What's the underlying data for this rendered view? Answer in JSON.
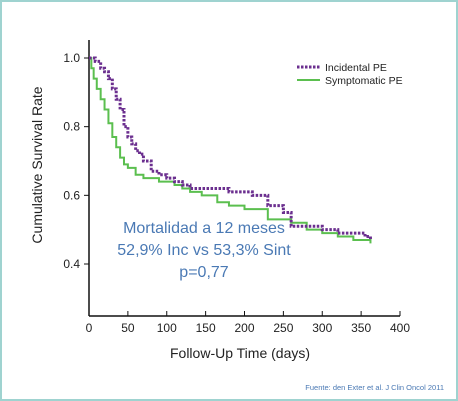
{
  "chart_data": {
    "type": "line",
    "title": "",
    "xlabel": "Follow-Up Time (days)",
    "ylabel": "Cumulative Survival Rate",
    "xlim": [
      0,
      400
    ],
    "ylim": [
      0.3,
      1.0
    ],
    "xticks": [
      0,
      50,
      100,
      150,
      200,
      250,
      300,
      350,
      400
    ],
    "yticks": [
      0.4,
      0.6,
      0.8,
      1.0
    ],
    "xtick_labels": [
      "0",
      "50",
      "100",
      "150",
      "200",
      "250",
      "300",
      "350",
      "400"
    ],
    "ytick_labels": [
      "0.4",
      "0.6",
      "0.8",
      "1.0"
    ],
    "grid": false,
    "legend_position": "top-right",
    "series": [
      {
        "name": "Incidental PE",
        "color": "#6b2f8f",
        "style": "dotted-step",
        "points": [
          [
            0,
            1.0
          ],
          [
            8,
            0.99
          ],
          [
            15,
            0.97
          ],
          [
            20,
            0.96
          ],
          [
            25,
            0.94
          ],
          [
            30,
            0.91
          ],
          [
            35,
            0.88
          ],
          [
            40,
            0.85
          ],
          [
            45,
            0.8
          ],
          [
            50,
            0.77
          ],
          [
            55,
            0.75
          ],
          [
            60,
            0.73
          ],
          [
            65,
            0.72
          ],
          [
            70,
            0.7
          ],
          [
            80,
            0.67
          ],
          [
            90,
            0.66
          ],
          [
            100,
            0.65
          ],
          [
            110,
            0.64
          ],
          [
            120,
            0.63
          ],
          [
            130,
            0.62
          ],
          [
            150,
            0.62
          ],
          [
            180,
            0.61
          ],
          [
            200,
            0.61
          ],
          [
            210,
            0.6
          ],
          [
            230,
            0.57
          ],
          [
            250,
            0.55
          ],
          [
            260,
            0.51
          ],
          [
            300,
            0.5
          ],
          [
            320,
            0.49
          ],
          [
            340,
            0.49
          ],
          [
            355,
            0.48
          ],
          [
            362,
            0.47
          ]
        ]
      },
      {
        "name": "Symptomatic PE",
        "color": "#5bbf4f",
        "style": "solid-step",
        "points": [
          [
            0,
            1.0
          ],
          [
            3,
            0.97
          ],
          [
            6,
            0.94
          ],
          [
            10,
            0.91
          ],
          [
            15,
            0.88
          ],
          [
            20,
            0.85
          ],
          [
            25,
            0.81
          ],
          [
            30,
            0.77
          ],
          [
            35,
            0.74
          ],
          [
            40,
            0.71
          ],
          [
            45,
            0.69
          ],
          [
            50,
            0.68
          ],
          [
            60,
            0.66
          ],
          [
            70,
            0.65
          ],
          [
            90,
            0.64
          ],
          [
            110,
            0.63
          ],
          [
            120,
            0.62
          ],
          [
            130,
            0.61
          ],
          [
            145,
            0.6
          ],
          [
            165,
            0.58
          ],
          [
            180,
            0.57
          ],
          [
            200,
            0.56
          ],
          [
            230,
            0.53
          ],
          [
            260,
            0.52
          ],
          [
            280,
            0.5
          ],
          [
            300,
            0.49
          ],
          [
            320,
            0.48
          ],
          [
            340,
            0.47
          ],
          [
            350,
            0.47
          ],
          [
            362,
            0.46
          ]
        ]
      }
    ]
  },
  "annotation": {
    "line1": "Mortalidad a 12 meses",
    "line2": "52,9% Inc vs 53,3%  Sint",
    "line3": "p=0,77"
  },
  "source": "Fuente: den Exter et al. J Clin Oncol 2011"
}
